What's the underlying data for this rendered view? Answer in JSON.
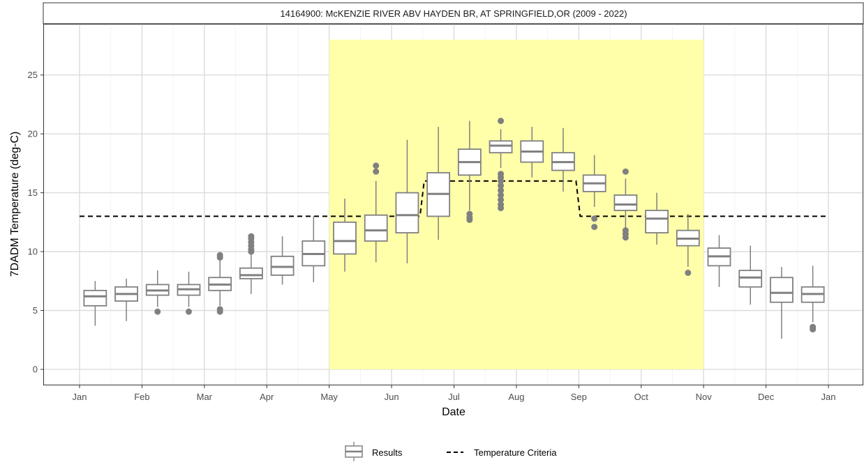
{
  "chart_data": {
    "type": "box",
    "title": "14164900: McKENZIE RIVER ABV HAYDEN BR, AT SPRINGFIELD,OR (2009 - 2022)",
    "xlabel": "Date",
    "ylabel": "7DADM Temperature (deg-C)",
    "x_ticks": [
      "Jan",
      "Feb",
      "Mar",
      "Apr",
      "May",
      "Jun",
      "Jul",
      "Aug",
      "Sep",
      "Oct",
      "Nov",
      "Dec",
      "Jan"
    ],
    "y_ticks": [
      "0",
      "5",
      "10",
      "15",
      "20",
      "25"
    ],
    "ylim": [
      -1.3,
      29.3
    ],
    "grid": true,
    "legend": {
      "position": "bottom",
      "items": [
        "Results",
        "Temperature Criteria"
      ]
    },
    "colors": {
      "box": "#808080",
      "criteria": "#000000",
      "highlight": "#ffffaa",
      "grid": "#d9d9d9"
    },
    "highlight_region": {
      "x_start": "May",
      "x_end": "Nov",
      "y_range": [
        0,
        28
      ]
    },
    "boxes": [
      {
        "period": "Jan (1st half)",
        "whisker_low": 3.7,
        "q1": 5.4,
        "median": 6.2,
        "q3": 6.7,
        "whisker_high": 7.5,
        "outliers": []
      },
      {
        "period": "Jan (2nd half)",
        "whisker_low": 4.1,
        "q1": 5.8,
        "median": 6.4,
        "q3": 7.0,
        "whisker_high": 7.7,
        "outliers": []
      },
      {
        "period": "Feb (1st half)",
        "whisker_low": 5.3,
        "q1": 6.3,
        "median": 6.7,
        "q3": 7.2,
        "whisker_high": 8.4,
        "outliers": [
          4.9
        ]
      },
      {
        "period": "Feb (2nd half)",
        "whisker_low": 5.3,
        "q1": 6.3,
        "median": 6.8,
        "q3": 7.2,
        "whisker_high": 8.3,
        "outliers": [
          4.9
        ]
      },
      {
        "period": "Mar (1st half)",
        "whisker_low": 5.4,
        "q1": 6.7,
        "median": 7.2,
        "q3": 7.8,
        "whisker_high": 9.3,
        "outliers": [
          4.9,
          5.1,
          9.5,
          9.7
        ]
      },
      {
        "period": "Mar (2nd half)",
        "whisker_low": 6.4,
        "q1": 7.7,
        "median": 8.0,
        "q3": 8.6,
        "whisker_high": 9.8,
        "outliers": [
          10.0,
          10.2,
          10.5,
          10.8,
          11.1,
          11.3
        ]
      },
      {
        "period": "Apr (1st half)",
        "whisker_low": 7.2,
        "q1": 8.0,
        "median": 8.7,
        "q3": 9.6,
        "whisker_high": 11.3,
        "outliers": []
      },
      {
        "period": "Apr (2nd half)",
        "whisker_low": 7.4,
        "q1": 8.8,
        "median": 9.8,
        "q3": 10.9,
        "whisker_high": 13.0,
        "outliers": []
      },
      {
        "period": "May (1st half)",
        "whisker_low": 8.3,
        "q1": 9.8,
        "median": 10.9,
        "q3": 12.5,
        "whisker_high": 14.5,
        "outliers": []
      },
      {
        "period": "May (2nd half)",
        "whisker_low": 9.1,
        "q1": 10.9,
        "median": 11.8,
        "q3": 13.1,
        "whisker_high": 16.0,
        "outliers": [
          16.8,
          17.3
        ]
      },
      {
        "period": "Jun (1st half)",
        "whisker_low": 9.0,
        "q1": 11.6,
        "median": 13.1,
        "q3": 15.0,
        "whisker_high": 19.5,
        "outliers": []
      },
      {
        "period": "Jun (2nd half)",
        "whisker_low": 11.0,
        "q1": 13.0,
        "median": 14.9,
        "q3": 16.7,
        "whisker_high": 20.6,
        "outliers": []
      },
      {
        "period": "Jul (1st half)",
        "whisker_low": 13.5,
        "q1": 16.5,
        "median": 17.6,
        "q3": 18.7,
        "whisker_high": 21.1,
        "outliers": [
          12.7,
          12.9,
          13.2
        ]
      },
      {
        "period": "Jul (2nd half)",
        "whisker_low": 17.1,
        "q1": 18.4,
        "median": 19.0,
        "q3": 19.4,
        "whisker_high": 20.4,
        "outliers": [
          13.7,
          14.0,
          14.4,
          14.8,
          15.2,
          15.6,
          16.0,
          16.3,
          16.6,
          21.1
        ]
      },
      {
        "period": "Aug (1st half)",
        "whisker_low": 16.3,
        "q1": 17.6,
        "median": 18.5,
        "q3": 19.4,
        "whisker_high": 20.6,
        "outliers": []
      },
      {
        "period": "Aug (2nd half)",
        "whisker_low": 15.1,
        "q1": 16.9,
        "median": 17.6,
        "q3": 18.4,
        "whisker_high": 20.5,
        "outliers": []
      },
      {
        "period": "Sep (1st half)",
        "whisker_low": 13.8,
        "q1": 15.1,
        "median": 15.8,
        "q3": 16.5,
        "whisker_high": 18.2,
        "outliers": [
          12.1,
          12.8
        ]
      },
      {
        "period": "Sep (2nd half)",
        "whisker_low": 12.0,
        "q1": 13.5,
        "median": 14.0,
        "q3": 14.8,
        "whisker_high": 16.2,
        "outliers": [
          11.2,
          11.5,
          11.8,
          16.8
        ]
      },
      {
        "period": "Oct (1st half)",
        "whisker_low": 10.6,
        "q1": 11.6,
        "median": 12.8,
        "q3": 13.5,
        "whisker_high": 15.0,
        "outliers": []
      },
      {
        "period": "Oct (2nd half)",
        "whisker_low": 8.7,
        "q1": 10.5,
        "median": 11.1,
        "q3": 11.8,
        "whisker_high": 13.2,
        "outliers": [
          8.2
        ]
      },
      {
        "period": "Nov (1st half)",
        "whisker_low": 7.0,
        "q1": 8.8,
        "median": 9.6,
        "q3": 10.3,
        "whisker_high": 11.4,
        "outliers": []
      },
      {
        "period": "Nov (2nd half)",
        "whisker_low": 5.5,
        "q1": 7.0,
        "median": 7.8,
        "q3": 8.4,
        "whisker_high": 10.5,
        "outliers": []
      },
      {
        "period": "Dec (1st half)",
        "whisker_low": 2.6,
        "q1": 5.7,
        "median": 6.5,
        "q3": 7.8,
        "whisker_high": 8.7,
        "outliers": []
      },
      {
        "period": "Dec (2nd half)",
        "whisker_low": 4.0,
        "q1": 5.7,
        "median": 6.4,
        "q3": 7.0,
        "whisker_high": 8.8,
        "outliers": [
          3.4,
          3.6
        ]
      }
    ],
    "criteria": [
      {
        "from": "Jan",
        "to": "mid-Jun",
        "value": 13
      },
      {
        "from": "mid-Jun",
        "to": "Sep",
        "value": 16
      },
      {
        "from": "Sep",
        "to": "end of Dec",
        "value": 13
      }
    ]
  }
}
